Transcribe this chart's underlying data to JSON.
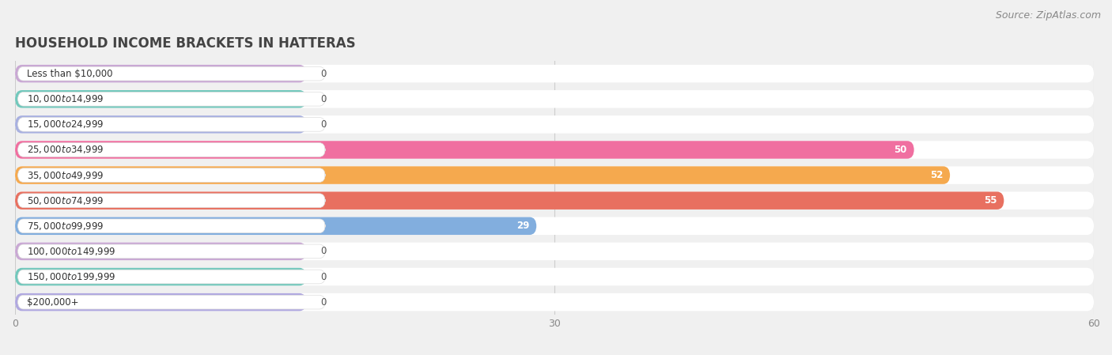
{
  "title": "HOUSEHOLD INCOME BRACKETS IN HATTERAS",
  "source": "Source: ZipAtlas.com",
  "categories": [
    "Less than $10,000",
    "$10,000 to $14,999",
    "$15,000 to $24,999",
    "$25,000 to $34,999",
    "$35,000 to $49,999",
    "$50,000 to $74,999",
    "$75,000 to $99,999",
    "$100,000 to $149,999",
    "$150,000 to $199,999",
    "$200,000+"
  ],
  "values": [
    0,
    0,
    0,
    50,
    52,
    55,
    29,
    0,
    0,
    0
  ],
  "bar_colors": [
    "#c9a8d4",
    "#72c8bc",
    "#a8b0e0",
    "#f06fa0",
    "#f5a94e",
    "#e87060",
    "#82aede",
    "#c9a8d4",
    "#72c8bc",
    "#b0a8e0"
  ],
  "xlim": [
    0,
    60
  ],
  "xticks": [
    0,
    30,
    60
  ],
  "background_color": "#f0f0f0",
  "row_bg_color": "#ffffff",
  "title_fontsize": 12,
  "source_fontsize": 9,
  "label_text_color": "#333333",
  "value_label_color_inside": "#ffffff",
  "value_label_color_outside": "#555555"
}
